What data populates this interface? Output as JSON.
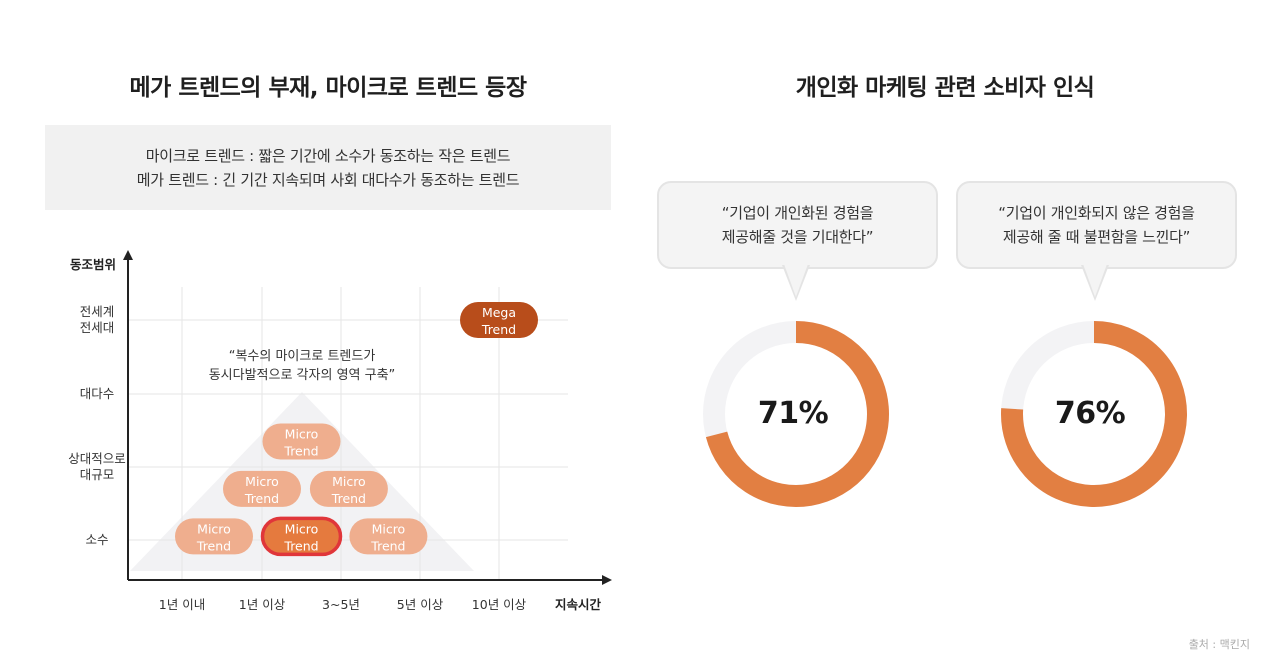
{
  "left_title": "메가 트렌드의 부재, 마이크로 트렌드 등장",
  "right_title": "개인화 마케팅 관련 소비자 인식",
  "definitions": [
    "마이크로 트렌드 : 짧은 기간에 소수가 동조하는 작은 트렌드",
    "메가 트렌드 : 긴 기간 지속되며 사회 대다수가 동조하는 트렌드"
  ],
  "chart_data": [
    {
      "type": "scatter",
      "ylabel": "동조범위",
      "xlabel": "지속시간",
      "x_categories": [
        "1년 이내",
        "1년 이상",
        "3~5년",
        "5년 이상",
        "10년 이상"
      ],
      "y_categories": [
        [
          "소수"
        ],
        [
          "상대적으로",
          "대규모"
        ],
        [
          "대다수"
        ],
        [
          "전세계",
          "전세대"
        ]
      ],
      "annotation": [
        "“복수의 마이크로 트렌드가",
        "동시다발적으로 각자의 영역 구축”"
      ],
      "points": [
        {
          "label": [
            "Mega",
            "Trend"
          ],
          "x": 4.0,
          "y": 3,
          "kind": "mega"
        },
        {
          "label": [
            "Micro",
            "Trend"
          ],
          "x": 1.5,
          "y": 1.35,
          "kind": "micro"
        },
        {
          "label": [
            "Micro",
            "Trend"
          ],
          "x": 1.0,
          "y": 0.7,
          "kind": "micro"
        },
        {
          "label": [
            "Micro",
            "Trend"
          ],
          "x": 2.1,
          "y": 0.7,
          "kind": "micro"
        },
        {
          "label": [
            "Micro",
            "Trend"
          ],
          "x": 0.4,
          "y": 0.05,
          "kind": "micro"
        },
        {
          "label": [
            "Micro",
            "Trend"
          ],
          "x": 1.5,
          "y": 0.05,
          "kind": "micro-highlight"
        },
        {
          "label": [
            "Micro",
            "Trend"
          ],
          "x": 2.6,
          "y": 0.05,
          "kind": "micro"
        }
      ],
      "colors": {
        "mega": "#b84d1b",
        "micro": "#efae8e",
        "highlight": "#e57a3e",
        "highlight_border": "#e0363a",
        "triangle": "#f2f2f4",
        "grid": "#e6e6e6"
      }
    },
    {
      "type": "pie",
      "quote": [
        "“기업이 개인화된 경험을",
        "제공해줄 것을 기대한다”"
      ],
      "value": 71,
      "label": "71%",
      "colors": {
        "fill": "#e27f42",
        "rest": "#f3f3f5"
      }
    },
    {
      "type": "pie",
      "quote": [
        "“기업이 개인화되지 않은 경험을",
        "제공해 줄 때 불편함을 느낀다”"
      ],
      "value": 76,
      "label": "76%",
      "colors": {
        "fill": "#e27f42",
        "rest": "#f3f3f5"
      }
    }
  ],
  "source": "출처 : 맥킨지"
}
